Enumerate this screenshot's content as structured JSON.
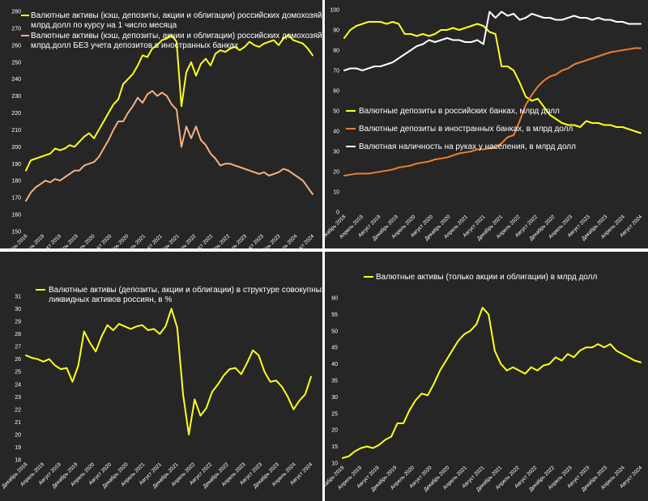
{
  "chart_data": [
    {
      "type": "line",
      "ylim": [
        150,
        280
      ],
      "y_ticks": [
        150,
        160,
        170,
        180,
        190,
        200,
        210,
        220,
        230,
        240,
        250,
        260,
        270,
        280
      ],
      "x_ticks": [
        "Декабрь 2018",
        "Апрель 2019",
        "Август 2019",
        "Декабрь 2019",
        "Апрель 2020",
        "Август 2020",
        "Декабрь 2020",
        "Апрель 2021",
        "Август 2021",
        "Декабрь 2021",
        "Апрель 2022",
        "Август 2022",
        "Декабрь 2022",
        "Апрель 2023",
        "Август 2023",
        "Декабрь 2023",
        "Апрель 2024",
        "Август 2024"
      ],
      "legend_position": "top-left",
      "grid": false,
      "series": [
        {
          "name": "Валютные активы (кэш, депозиты, акции и облигации) российских домохозяйств в млрд.долл по курсу на 1 число месяца",
          "color": "#ffff1a",
          "values": [
            186,
            192,
            193,
            194,
            195,
            196,
            199,
            198,
            199,
            201,
            200,
            203,
            206,
            208,
            205,
            210,
            215,
            220,
            225,
            228,
            237,
            240,
            243,
            248,
            254,
            253,
            258,
            260,
            263,
            264,
            266,
            262,
            224,
            244,
            250,
            242,
            249,
            252,
            248,
            255,
            257,
            256,
            258,
            259,
            257,
            259,
            262,
            260,
            259,
            261,
            262,
            263,
            260,
            264,
            266,
            263,
            262,
            261,
            258,
            254
          ]
        },
        {
          "name": "Валютные активы (кэш, депозиты, акции и облигации) российских домохозяйств в млрд.долл БЕЗ учета депозитов в иностранных банках",
          "color": "#f4b183",
          "values": [
            168,
            173,
            176,
            178,
            180,
            179,
            181,
            180,
            182,
            184,
            186,
            186,
            189,
            190,
            191,
            194,
            199,
            204,
            210,
            215,
            215,
            220,
            224,
            229,
            226,
            231,
            233,
            230,
            232,
            230,
            225,
            222,
            200,
            212,
            205,
            212,
            204,
            201,
            196,
            193,
            189,
            190,
            190,
            189,
            188,
            187,
            186,
            185,
            184,
            185,
            183,
            184,
            185,
            187,
            186,
            184,
            182,
            180,
            176,
            172
          ]
        }
      ]
    },
    {
      "type": "line",
      "ylim": [
        0,
        100
      ],
      "y_ticks": [
        0,
        10,
        20,
        30,
        40,
        50,
        60,
        70,
        80,
        90,
        100
      ],
      "x_ticks": [
        "Декабрь 2018",
        "Апрель 2019",
        "Август 2019",
        "Декабрь 2019",
        "Апрель 2020",
        "Август 2020",
        "Декабрь 2020",
        "Апрель 2021",
        "Август 2021",
        "Декабрь 2021",
        "Апрель 2022",
        "Август 2022",
        "Декабрь 2022",
        "Апрель 2023",
        "Август 2023",
        "Декабрь 2023",
        "Апрель 2024",
        "Август 2024"
      ],
      "legend_position": "center",
      "grid": false,
      "series": [
        {
          "name": "Валютные депозиты в российских банках, млрд долл",
          "color": "#ffff1a",
          "values": [
            86,
            90,
            92,
            93,
            94,
            94,
            94,
            93,
            94,
            93,
            88,
            88,
            87,
            88,
            87,
            88,
            90,
            90,
            91,
            90,
            91,
            92,
            93,
            92,
            89,
            88,
            72,
            72,
            70,
            64,
            57,
            55,
            56,
            52,
            48,
            46,
            44,
            43,
            43,
            42,
            45,
            44,
            44,
            43,
            43,
            42,
            42,
            41,
            40,
            39
          ]
        },
        {
          "name": "Валютные депозиты в иностранных банках, в млрд долл",
          "color": "#ed7d31",
          "values": [
            18,
            18.5,
            19,
            19,
            19,
            19.5,
            20,
            20.5,
            21,
            22,
            22.5,
            23,
            24,
            24.5,
            25,
            26,
            26.5,
            27,
            28,
            29,
            29.5,
            30,
            31,
            31,
            31.5,
            32,
            34,
            37,
            38,
            45,
            53,
            58,
            62,
            65,
            67,
            68,
            70,
            71,
            73,
            74,
            75,
            76,
            77,
            78,
            79,
            79.5,
            80,
            80.5,
            81,
            81
          ]
        },
        {
          "name": "Валютная наличность на руках у населения, в млрд долл",
          "color": "#ffffff",
          "values": [
            70,
            71,
            71,
            70,
            71,
            72,
            72,
            73,
            74,
            76,
            78,
            80,
            82,
            83,
            85,
            84,
            85,
            86,
            85,
            85,
            84,
            84,
            85,
            83,
            99,
            96,
            99,
            97,
            98,
            95,
            96,
            98,
            97,
            96,
            96,
            95,
            95,
            96,
            97,
            96,
            96,
            95,
            96,
            95,
            95,
            94,
            94,
            93,
            93,
            93
          ]
        }
      ]
    },
    {
      "type": "line",
      "ylim": [
        18,
        31
      ],
      "y_ticks": [
        18,
        19,
        20,
        21,
        22,
        23,
        24,
        25,
        26,
        27,
        28,
        29,
        30,
        31
      ],
      "x_ticks": [
        "Декабрь 2018",
        "Апрель 2019",
        "Август 2019",
        "Декабрь 2019",
        "Апрель 2020",
        "Август 2020",
        "Декабрь 2020",
        "Апрель 2021",
        "Август 2021",
        "Декабрь 2021",
        "Апрель 2022",
        "Август 2022",
        "Декабрь 2022",
        "Апрель 2023",
        "Август 2023",
        "Декабрь 2023",
        "Апрель 2024",
        "Август 2024"
      ],
      "legend_position": "top-center",
      "grid": false,
      "series": [
        {
          "name": "Валютные активы (депозиты, акции и облигации) в структуре совокупных ликвидных активов россиян, в %",
          "color": "#ffff1a",
          "values": [
            26.3,
            26.1,
            26.0,
            25.8,
            26.0,
            25.5,
            25.2,
            25.3,
            24.2,
            25.5,
            28.2,
            27.3,
            26.6,
            27.8,
            28.7,
            28.3,
            28.8,
            28.6,
            28.4,
            28.6,
            28.7,
            28.3,
            28.4,
            28.0,
            28.6,
            30.0,
            28.5,
            23.2,
            20.0,
            22.8,
            21.5,
            22.1,
            23.4,
            24.0,
            24.7,
            25.2,
            25.3,
            24.8,
            25.7,
            26.7,
            26.3,
            25.0,
            24.2,
            24.3,
            23.8,
            23.0,
            22.0,
            22.7,
            23.2,
            24.6
          ]
        }
      ]
    },
    {
      "type": "line",
      "ylim": [
        10,
        60
      ],
      "y_ticks": [
        10,
        15,
        20,
        25,
        30,
        35,
        40,
        45,
        50,
        55,
        60
      ],
      "x_ticks": [
        "Декабрь 2018",
        "Апрель 2019",
        "Август 2019",
        "Декабрь 2019",
        "Апрель 2020",
        "Август 2020",
        "Декабрь 2020",
        "Апрель 2021",
        "Август 2021",
        "Декабрь 2021",
        "Апрель 2022",
        "Август 2022",
        "Декабрь 2022",
        "Апрель 2023",
        "Август 2023",
        "Декабрь 2023",
        "Апрель 2024",
        "Август 2024"
      ],
      "legend_position": "top-center",
      "grid": false,
      "series": [
        {
          "name": "Валютные активы (только акции и облигации) в млрд долл",
          "color": "#ffff1a",
          "values": [
            11.5,
            12,
            13.5,
            14.5,
            15,
            14.5,
            15.5,
            17,
            18,
            22,
            22,
            26,
            29,
            31,
            30.5,
            34,
            38,
            41,
            44,
            47,
            49,
            50,
            52,
            57,
            55,
            44,
            40,
            38,
            39,
            38,
            37,
            39,
            38,
            39.5,
            40,
            42,
            41,
            43,
            42,
            44,
            45,
            45,
            46,
            45,
            46,
            44,
            43,
            42,
            41,
            40.5
          ]
        }
      ]
    }
  ]
}
